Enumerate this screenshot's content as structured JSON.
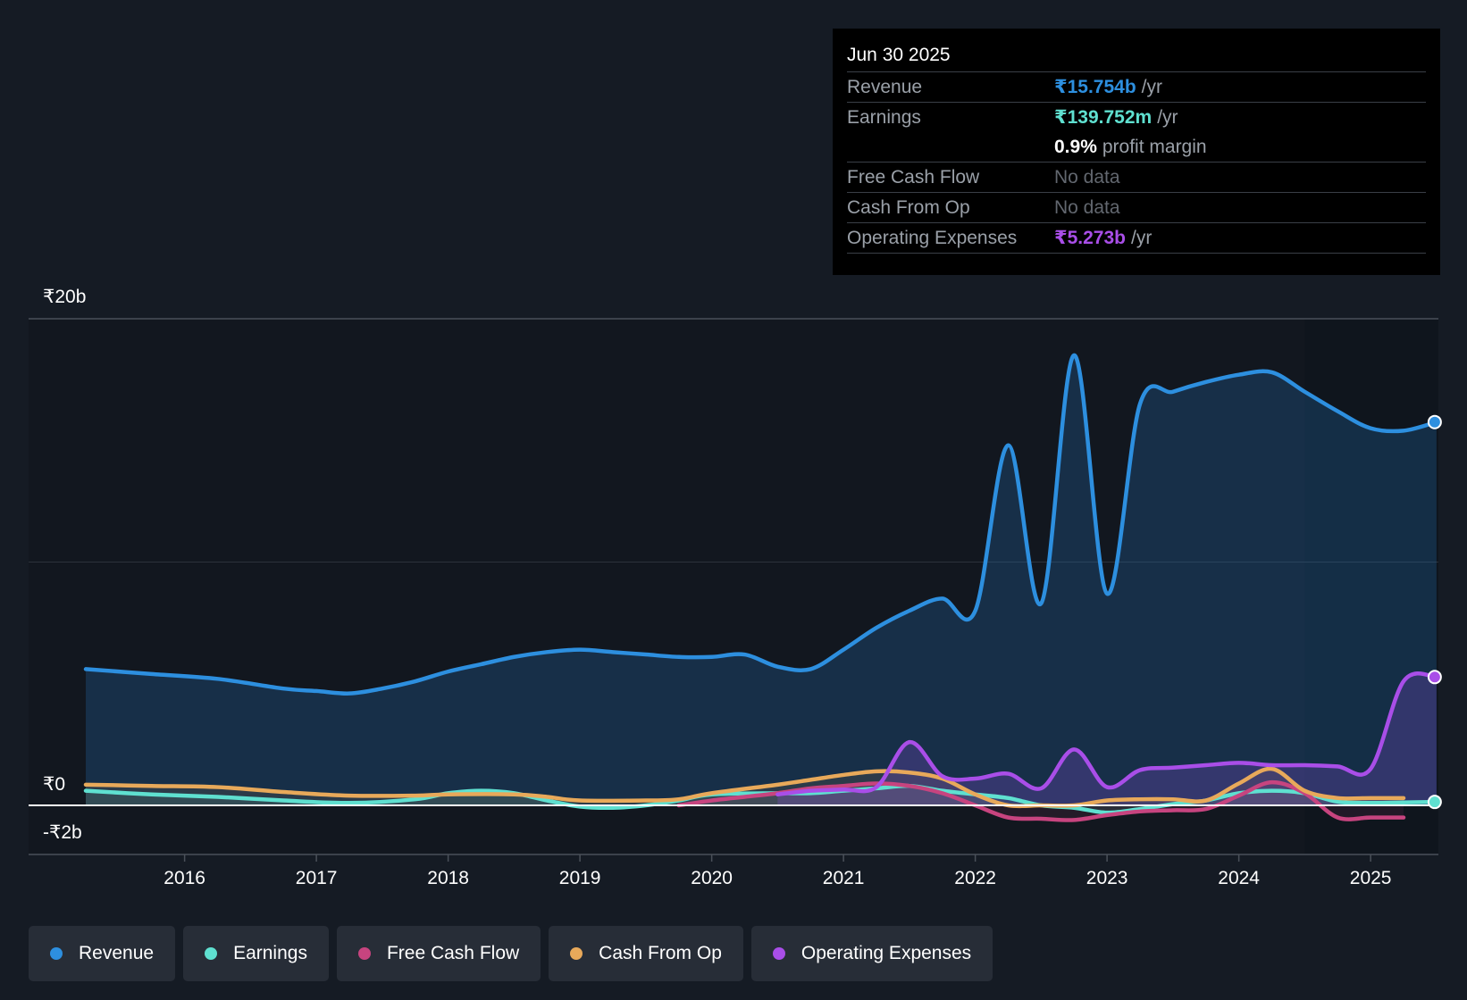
{
  "tooltip": {
    "date": "Jun 30 2025",
    "rows": [
      {
        "label": "Revenue",
        "value": "₹15.754b",
        "unit": "/yr",
        "color": "#2d8fdf"
      },
      {
        "label": "Earnings",
        "value": "₹139.752m",
        "unit": "/yr",
        "color": "#5fe0d0"
      },
      {
        "label": "",
        "value": "0.9%",
        "unit": "profit margin",
        "color": "#ffffff"
      },
      {
        "label": "Free Cash Flow",
        "value": "No data",
        "unit": "",
        "color": "#62676f"
      },
      {
        "label": "Cash From Op",
        "value": "No data",
        "unit": "",
        "color": "#62676f"
      },
      {
        "label": "Operating Expenses",
        "value": "₹5.273b",
        "unit": "/yr",
        "color": "#a94ee8"
      }
    ]
  },
  "legend": [
    {
      "label": "Revenue",
      "color": "#2d8fdf"
    },
    {
      "label": "Earnings",
      "color": "#5fe0d0"
    },
    {
      "label": "Free Cash Flow",
      "color": "#c7447f"
    },
    {
      "label": "Cash From Op",
      "color": "#e8a95a"
    },
    {
      "label": "Operating Expenses",
      "color": "#a94ee8"
    }
  ],
  "chart_data": {
    "type": "area",
    "xlabel": "",
    "ylabel": "",
    "ylim": [
      -2,
      20
    ],
    "y_tick_labels": [
      {
        "value": 20,
        "label": "₹20b"
      },
      {
        "value": 0,
        "label": "₹0"
      },
      {
        "value": -2,
        "label": "-₹2b"
      }
    ],
    "x_ticks": [
      2016,
      2017,
      2018,
      2019,
      2020,
      2021,
      2022,
      2023,
      2024,
      2025
    ],
    "xlim": [
      2015.0,
      2025.5
    ],
    "forecast_start": 2024.5,
    "grid": true,
    "legend_position": "bottom",
    "series": [
      {
        "name": "Revenue",
        "color": "#2d8fdf",
        "points": [
          [
            2015.25,
            5.6
          ],
          [
            2015.75,
            5.4
          ],
          [
            2016.25,
            5.2
          ],
          [
            2016.75,
            4.8
          ],
          [
            2017.0,
            4.7
          ],
          [
            2017.25,
            4.6
          ],
          [
            2017.5,
            4.8
          ],
          [
            2017.75,
            5.1
          ],
          [
            2018.0,
            5.5
          ],
          [
            2018.25,
            5.8
          ],
          [
            2018.5,
            6.1
          ],
          [
            2018.75,
            6.3
          ],
          [
            2019.0,
            6.4
          ],
          [
            2019.25,
            6.3
          ],
          [
            2019.5,
            6.2
          ],
          [
            2019.75,
            6.1
          ],
          [
            2020.0,
            6.1
          ],
          [
            2020.25,
            6.2
          ],
          [
            2020.5,
            5.7
          ],
          [
            2020.75,
            5.6
          ],
          [
            2021.0,
            6.4
          ],
          [
            2021.25,
            7.3
          ],
          [
            2021.5,
            8.0
          ],
          [
            2021.75,
            8.5
          ],
          [
            2022.0,
            8.0
          ],
          [
            2022.25,
            14.8
          ],
          [
            2022.5,
            8.3
          ],
          [
            2022.75,
            18.5
          ],
          [
            2023.0,
            8.7
          ],
          [
            2023.25,
            16.5
          ],
          [
            2023.5,
            17.0
          ],
          [
            2023.75,
            17.4
          ],
          [
            2024.0,
            17.7
          ],
          [
            2024.25,
            17.8
          ],
          [
            2024.5,
            17.0
          ],
          [
            2024.75,
            16.2
          ],
          [
            2025.0,
            15.5
          ],
          [
            2025.25,
            15.4
          ],
          [
            2025.5,
            15.754
          ]
        ]
      },
      {
        "name": "Earnings",
        "color": "#5fe0d0",
        "points": [
          [
            2015.25,
            0.6
          ],
          [
            2015.75,
            0.45
          ],
          [
            2016.25,
            0.35
          ],
          [
            2016.75,
            0.2
          ],
          [
            2017.25,
            0.1
          ],
          [
            2017.75,
            0.25
          ],
          [
            2018.0,
            0.5
          ],
          [
            2018.25,
            0.6
          ],
          [
            2018.5,
            0.5
          ],
          [
            2018.75,
            0.2
          ],
          [
            2019.0,
            -0.05
          ],
          [
            2019.25,
            -0.1
          ],
          [
            2019.5,
            0.0
          ],
          [
            2019.75,
            0.2
          ],
          [
            2020.0,
            0.45
          ],
          [
            2020.5,
            0.5
          ],
          [
            2020.75,
            0.5
          ],
          [
            2021.0,
            0.6
          ],
          [
            2021.25,
            0.7
          ],
          [
            2021.5,
            0.8
          ],
          [
            2021.75,
            0.6
          ],
          [
            2022.0,
            0.45
          ],
          [
            2022.25,
            0.3
          ],
          [
            2022.5,
            0.0
          ],
          [
            2022.75,
            -0.1
          ],
          [
            2023.0,
            -0.3
          ],
          [
            2023.25,
            -0.15
          ],
          [
            2023.5,
            0.05
          ],
          [
            2023.75,
            0.2
          ],
          [
            2024.0,
            0.5
          ],
          [
            2024.25,
            0.6
          ],
          [
            2024.5,
            0.5
          ],
          [
            2024.75,
            0.15
          ],
          [
            2025.0,
            0.1
          ],
          [
            2025.25,
            0.12
          ],
          [
            2025.5,
            0.14
          ]
        ]
      },
      {
        "name": "Free Cash Flow",
        "color": "#c7447f",
        "points": [
          [
            2019.75,
            0.0
          ],
          [
            2020.0,
            0.2
          ],
          [
            2020.25,
            0.35
          ],
          [
            2020.5,
            0.5
          ],
          [
            2020.75,
            0.7
          ],
          [
            2021.0,
            0.8
          ],
          [
            2021.25,
            0.9
          ],
          [
            2021.5,
            0.8
          ],
          [
            2021.75,
            0.5
          ],
          [
            2022.0,
            0.0
          ],
          [
            2022.25,
            -0.5
          ],
          [
            2022.5,
            -0.55
          ],
          [
            2022.75,
            -0.6
          ],
          [
            2023.0,
            -0.4
          ],
          [
            2023.25,
            -0.25
          ],
          [
            2023.5,
            -0.2
          ],
          [
            2023.75,
            -0.15
          ],
          [
            2024.0,
            0.4
          ],
          [
            2024.25,
            0.95
          ],
          [
            2024.5,
            0.5
          ],
          [
            2024.75,
            -0.5
          ],
          [
            2025.0,
            -0.5
          ],
          [
            2025.25,
            -0.5
          ]
        ]
      },
      {
        "name": "Cash From Op",
        "color": "#e8a95a",
        "points": [
          [
            2015.25,
            0.85
          ],
          [
            2015.75,
            0.8
          ],
          [
            2016.25,
            0.75
          ],
          [
            2016.75,
            0.55
          ],
          [
            2017.25,
            0.4
          ],
          [
            2017.75,
            0.4
          ],
          [
            2018.0,
            0.45
          ],
          [
            2018.5,
            0.45
          ],
          [
            2018.75,
            0.35
          ],
          [
            2019.0,
            0.2
          ],
          [
            2019.5,
            0.2
          ],
          [
            2019.75,
            0.25
          ],
          [
            2020.0,
            0.5
          ],
          [
            2020.5,
            0.85
          ],
          [
            2020.75,
            1.05
          ],
          [
            2021.0,
            1.25
          ],
          [
            2021.25,
            1.4
          ],
          [
            2021.5,
            1.35
          ],
          [
            2021.75,
            1.1
          ],
          [
            2022.0,
            0.45
          ],
          [
            2022.25,
            0.0
          ],
          [
            2022.5,
            0.0
          ],
          [
            2022.75,
            0.0
          ],
          [
            2023.0,
            0.2
          ],
          [
            2023.25,
            0.25
          ],
          [
            2023.5,
            0.25
          ],
          [
            2023.75,
            0.2
          ],
          [
            2024.0,
            0.9
          ],
          [
            2024.25,
            1.5
          ],
          [
            2024.5,
            0.6
          ],
          [
            2024.75,
            0.3
          ],
          [
            2025.0,
            0.3
          ],
          [
            2025.25,
            0.3
          ]
        ]
      },
      {
        "name": "Operating Expenses",
        "color": "#a94ee8",
        "points": [
          [
            2020.5,
            0.45
          ],
          [
            2020.75,
            0.6
          ],
          [
            2021.0,
            0.65
          ],
          [
            2021.25,
            0.75
          ],
          [
            2021.5,
            2.6
          ],
          [
            2021.75,
            1.2
          ],
          [
            2022.0,
            1.1
          ],
          [
            2022.25,
            1.3
          ],
          [
            2022.5,
            0.7
          ],
          [
            2022.75,
            2.3
          ],
          [
            2023.0,
            0.75
          ],
          [
            2023.25,
            1.45
          ],
          [
            2023.5,
            1.55
          ],
          [
            2023.75,
            1.65
          ],
          [
            2024.0,
            1.75
          ],
          [
            2024.25,
            1.65
          ],
          [
            2024.5,
            1.65
          ],
          [
            2024.75,
            1.6
          ],
          [
            2025.0,
            1.5
          ],
          [
            2025.25,
            5.1
          ],
          [
            2025.5,
            5.273
          ]
        ]
      }
    ]
  }
}
